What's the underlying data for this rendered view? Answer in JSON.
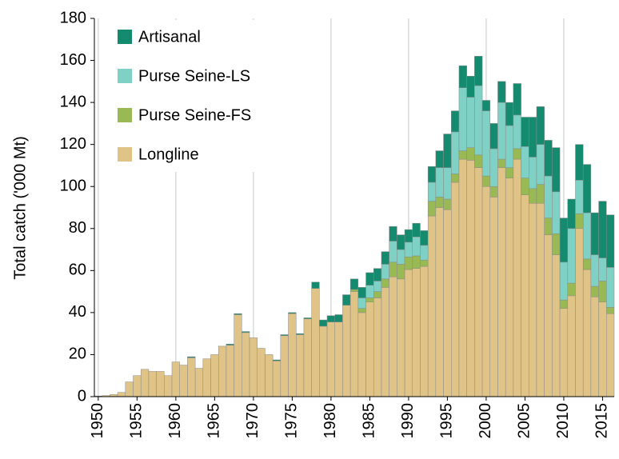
{
  "chart_data": {
    "type": "stacked_bar",
    "y_label": "Total catch ('000 Mt)",
    "x": [
      1950,
      1951,
      1952,
      1953,
      1954,
      1955,
      1956,
      1957,
      1958,
      1959,
      1960,
      1961,
      1962,
      1963,
      1964,
      1965,
      1966,
      1967,
      1968,
      1969,
      1970,
      1971,
      1972,
      1973,
      1974,
      1975,
      1976,
      1977,
      1978,
      1979,
      1980,
      1981,
      1982,
      1983,
      1984,
      1985,
      1986,
      1987,
      1988,
      1989,
      1990,
      1991,
      1992,
      1993,
      1994,
      1995,
      1996,
      1997,
      1998,
      1999,
      2000,
      2001,
      2002,
      2003,
      2004,
      2005,
      2006,
      2007,
      2008,
      2009,
      2010,
      2011,
      2012,
      2013,
      2014,
      2015,
      2016
    ],
    "series": [
      {
        "name": "Longline",
        "color": "#e0c386",
        "values": [
          0.3,
          0.5,
          1,
          2,
          7,
          10,
          13,
          12,
          12,
          10,
          16.5,
          15,
          18.5,
          13.5,
          18,
          20,
          24,
          24.5,
          39,
          30.5,
          28,
          23,
          20,
          17,
          29,
          39.5,
          29.5,
          37,
          51.5,
          33.5,
          35.5,
          35.5,
          43.5,
          50,
          40,
          45,
          47,
          52,
          57,
          56,
          60.5,
          61,
          62,
          86,
          90,
          89,
          102,
          113,
          112.5,
          109,
          100,
          95,
          109,
          104,
          113,
          96,
          92,
          92,
          77,
          67.5,
          42,
          48,
          80,
          60.5,
          47.5,
          45,
          39.5
        ]
      },
      {
        "name": "Purse Seine-FS",
        "color": "#98b954",
        "values": [
          0,
          0,
          0,
          0,
          0,
          0,
          0,
          0,
          0,
          0,
          0,
          0,
          0,
          0,
          0,
          0,
          0,
          0,
          0,
          0,
          0,
          0,
          0,
          0,
          0,
          0,
          0,
          0,
          0,
          0,
          0,
          0,
          0,
          1,
          2,
          2,
          3,
          4,
          7,
          7,
          6,
          6,
          3,
          7,
          5,
          5,
          4,
          4,
          6,
          6,
          5,
          5,
          4,
          5,
          5,
          8,
          7,
          9,
          8,
          10,
          4,
          6,
          7,
          5,
          5,
          10,
          3
        ]
      },
      {
        "name": "Purse Seine-LS",
        "color": "#7ed1c4",
        "values": [
          0,
          0,
          0,
          0,
          0,
          0,
          0,
          0,
          0,
          0,
          0,
          0,
          0,
          0,
          0,
          0,
          0,
          0,
          0,
          0,
          0,
          0,
          0,
          0,
          0,
          0,
          0,
          0,
          0,
          0,
          0,
          0,
          0,
          0,
          5,
          6,
          5,
          7,
          10,
          7,
          7,
          9,
          7,
          9,
          14,
          15,
          20,
          30,
          24,
          33,
          31,
          18,
          27,
          20,
          16,
          15,
          15,
          19,
          20,
          20,
          18,
          26,
          16,
          22,
          15,
          11,
          19
        ]
      },
      {
        "name": "Artisanal",
        "color": "#148a6f",
        "values": [
          0,
          0,
          0,
          0,
          0,
          0,
          0,
          0,
          0,
          0,
          0,
          0,
          0.5,
          0,
          0,
          0,
          0,
          0.5,
          0.5,
          0.5,
          0,
          0,
          0,
          0.5,
          0.5,
          0.5,
          0.5,
          0.5,
          3,
          3,
          3,
          3.5,
          5,
          5,
          5,
          6,
          6,
          6,
          7,
          7,
          6,
          6.5,
          7,
          7.5,
          8,
          16,
          10,
          10.5,
          10,
          14,
          5,
          12,
          10,
          11,
          15,
          14,
          19,
          18,
          17,
          21,
          21,
          14,
          17,
          23,
          20,
          27,
          25
        ]
      }
    ],
    "xlim": [
      1949.5,
      2016.5
    ],
    "xticks": [
      1950,
      1955,
      1960,
      1965,
      1970,
      1975,
      1980,
      1985,
      1990,
      1995,
      2000,
      2005,
      2010,
      2015
    ],
    "ylim": [
      0,
      180
    ],
    "yticks": [
      0,
      20,
      40,
      60,
      80,
      100,
      120,
      140,
      160,
      180
    ],
    "grid": "x",
    "legend": "upper left"
  }
}
